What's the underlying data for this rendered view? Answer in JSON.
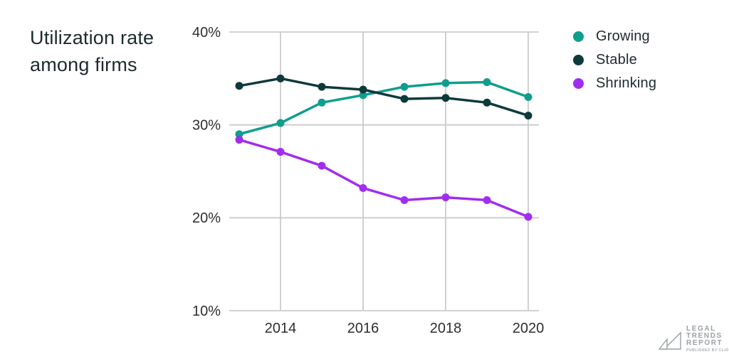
{
  "title": "Utilization rate among firms",
  "chart_data": {
    "type": "line",
    "title": "Utilization rate among firms",
    "x": [
      2013,
      2014,
      2015,
      2016,
      2017,
      2018,
      2019,
      2020
    ],
    "x_ticks": [
      2014,
      2016,
      2018,
      2020
    ],
    "y_ticks": [
      10,
      20,
      30,
      40
    ],
    "y_tick_suffix": "%",
    "ylim": [
      10,
      40
    ],
    "xlabel": "",
    "ylabel": "",
    "grid": true,
    "legend_position": "top-right",
    "grid_color": "#cbcbcb",
    "axis_text_color": "#2e2e2e",
    "series": [
      {
        "name": "Growing",
        "color": "#0f9e8e",
        "values": [
          29.0,
          30.2,
          32.4,
          33.2,
          34.1,
          34.5,
          34.6,
          33.0
        ]
      },
      {
        "name": "Stable",
        "color": "#0f3a3c",
        "values": [
          34.2,
          35.0,
          34.1,
          33.8,
          32.8,
          32.9,
          32.4,
          31.0
        ]
      },
      {
        "name": "Shrinking",
        "color": "#a12df0",
        "values": [
          28.4,
          27.1,
          25.6,
          23.2,
          21.9,
          22.2,
          21.9,
          20.1
        ]
      }
    ]
  },
  "logo": {
    "line1": "LEGAL",
    "line2": "TRENDS",
    "line3": "REPORT",
    "tagline": "PUBLISHED BY CLIO",
    "color": "#9aa0a4"
  }
}
